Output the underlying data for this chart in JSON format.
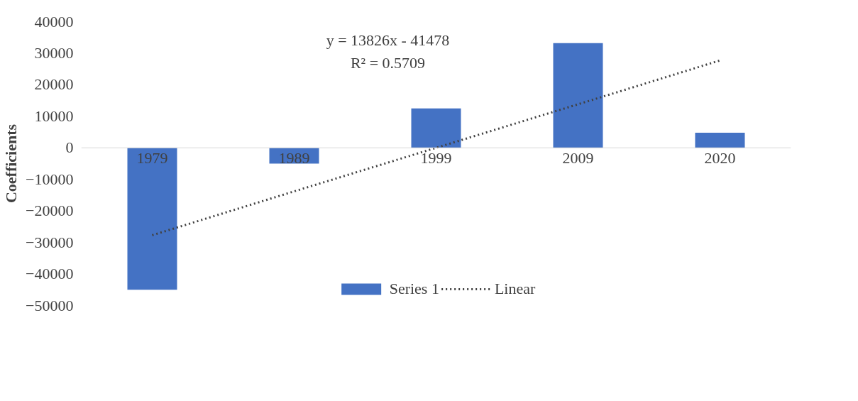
{
  "chart_data": {
    "type": "bar",
    "ylabel": "Coefficients",
    "categories": [
      "1979",
      "1989",
      "1999",
      "2009",
      "2020"
    ],
    "series": [
      {
        "name": "Series 1",
        "color": "#4472c4",
        "values": [
          -45000,
          -5000,
          12500,
          33200,
          4800
        ]
      },
      {
        "name": "Linear",
        "type": "line",
        "color": "#404040",
        "line_style": "dotted",
        "values": [
          -27700,
          -13800,
          0,
          13800,
          27700
        ]
      }
    ],
    "ylim": [
      -50000,
      40000
    ],
    "yticks": [
      -50000,
      -40000,
      -30000,
      -20000,
      -10000,
      0,
      10000,
      20000,
      30000,
      40000
    ],
    "annotations": [
      "y = 13826x - 41478",
      "R² = 0.5709"
    ],
    "grid": false,
    "legend": "bottom"
  }
}
